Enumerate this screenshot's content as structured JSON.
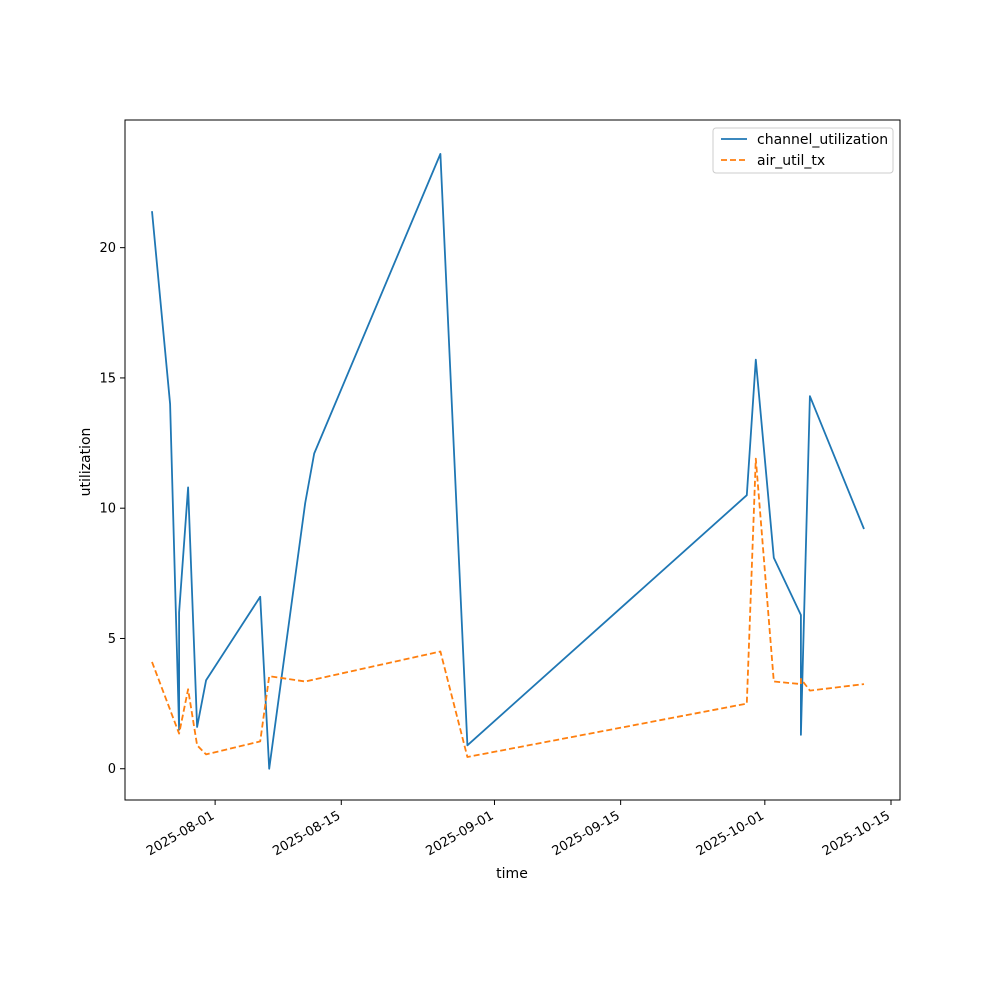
{
  "chart_data": {
    "type": "line",
    "title": "",
    "xlabel": "time",
    "ylabel": "utilization",
    "x_axis_type": "date",
    "xlim": [
      "2025-07-22",
      "2025-10-16"
    ],
    "ylim": [
      -1.2,
      24.9
    ],
    "x_ticks": [
      "2025-08-01",
      "2025-08-15",
      "2025-09-01",
      "2025-09-15",
      "2025-10-01",
      "2025-10-15"
    ],
    "y_ticks": [
      0,
      5,
      10,
      15,
      20
    ],
    "grid": false,
    "legend_position": "top-right",
    "series": [
      {
        "name": "channel_utilization",
        "color": "#1f77b4",
        "line_style": "solid",
        "points": [
          [
            "2025-07-25",
            21.4
          ],
          [
            "2025-07-27",
            14.0
          ],
          [
            "2025-07-28",
            1.5
          ],
          [
            "2025-07-28",
            6.0
          ],
          [
            "2025-07-29",
            10.8
          ],
          [
            "2025-07-30",
            1.6
          ],
          [
            "2025-07-31",
            3.4
          ],
          [
            "2025-08-06",
            6.6
          ],
          [
            "2025-08-07",
            0.0
          ],
          [
            "2025-08-11",
            10.2
          ],
          [
            "2025-08-12",
            12.1
          ],
          [
            "2025-08-26",
            23.6
          ],
          [
            "2025-08-29",
            0.9
          ],
          [
            "2025-09-29",
            10.5
          ],
          [
            "2025-09-30",
            15.7
          ],
          [
            "2025-10-02",
            8.1
          ],
          [
            "2025-10-05",
            5.9
          ],
          [
            "2025-10-05",
            1.3
          ],
          [
            "2025-10-06",
            14.3
          ],
          [
            "2025-10-12",
            9.2
          ]
        ]
      },
      {
        "name": "air_util_tx",
        "color": "#ff7f0e",
        "line_style": "dashed",
        "points": [
          [
            "2025-07-25",
            4.1
          ],
          [
            "2025-07-28",
            1.35
          ],
          [
            "2025-07-29",
            3.05
          ],
          [
            "2025-07-30",
            0.9
          ],
          [
            "2025-07-31",
            0.55
          ],
          [
            "2025-08-06",
            1.05
          ],
          [
            "2025-08-07",
            3.55
          ],
          [
            "2025-08-11",
            3.35
          ],
          [
            "2025-08-26",
            4.5
          ],
          [
            "2025-08-29",
            0.45
          ],
          [
            "2025-09-29",
            2.5
          ],
          [
            "2025-09-30",
            11.9
          ],
          [
            "2025-10-02",
            3.35
          ],
          [
            "2025-10-05",
            3.25
          ],
          [
            "2025-10-05",
            3.45
          ],
          [
            "2025-10-06",
            3.0
          ],
          [
            "2025-10-12",
            3.25
          ]
        ]
      }
    ]
  }
}
